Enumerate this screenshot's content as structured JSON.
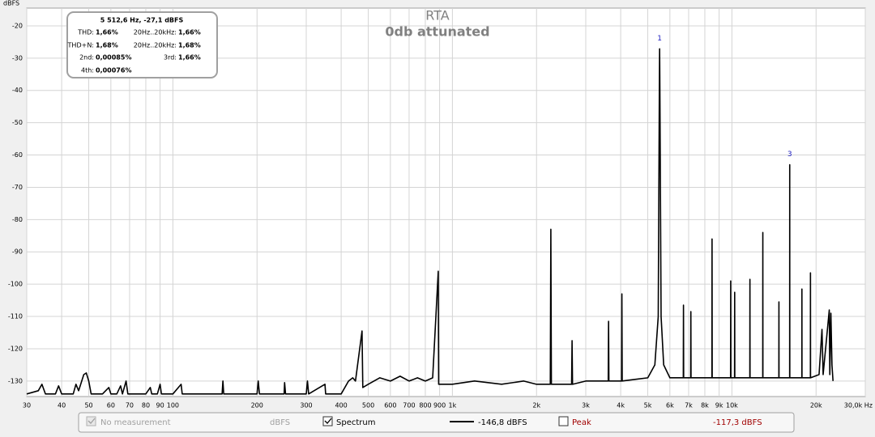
{
  "chart_data": {
    "type": "line",
    "title": "RTA",
    "subtitle": "0db attunated",
    "ylabel": "dBFS",
    "log_x": true,
    "grid": true,
    "xlim": [
      30,
      30000
    ],
    "ylim": [
      -134.8,
      -14.5
    ],
    "yticks": [
      -20,
      -30,
      -40,
      -50,
      -60,
      -70,
      -80,
      -90,
      -100,
      -110,
      -120,
      -130
    ],
    "xticks": [
      30,
      40,
      50,
      60,
      70,
      80,
      90,
      100,
      200,
      300,
      400,
      500,
      600,
      700,
      800,
      900,
      {
        "value": 1000,
        "label": "1k"
      },
      {
        "value": 2000,
        "label": "2k"
      },
      {
        "value": 3000,
        "label": "3k"
      },
      {
        "value": 4000,
        "label": "4k"
      },
      {
        "value": 5000,
        "label": "5k"
      },
      {
        "value": 6000,
        "label": "6k"
      },
      {
        "value": 7000,
        "label": "7k"
      },
      {
        "value": 8000,
        "label": "8k"
      },
      {
        "value": 9000,
        "label": "9k"
      },
      {
        "value": 10000,
        "label": "10k"
      },
      {
        "value": 20000,
        "label": "20k"
      },
      {
        "value": 30000,
        "label": "30,0k Hz"
      }
    ],
    "series": [
      {
        "name": "Spectrum",
        "color": "#000000",
        "x": [
          30,
          33,
          34,
          35,
          38,
          39,
          40,
          44,
          45,
          46,
          48,
          49,
          50,
          51,
          56,
          59,
          60,
          63,
          65,
          66,
          68,
          69,
          80,
          83,
          84,
          88,
          90,
          91,
          100,
          107,
          108,
          150,
          151,
          152,
          200,
          202,
          204,
          250,
          251,
          253,
          300,
          303,
          306,
          350,
          352,
          400,
          425,
          440,
          450,
          475,
          478,
          500,
          550,
          600,
          650,
          700,
          750,
          800,
          850,
          890,
          893,
          1000,
          1200,
          1500,
          1800,
          2000,
          2240,
          2250,
          2260,
          2500,
          2670,
          2680,
          2690,
          3000,
          3500,
          3610,
          3620,
          3630,
          4030,
          4040,
          4050,
          4500,
          5000,
          5300,
          5450,
          5500,
          5512.6,
          5525,
          5580,
          5700,
          6000,
          6700,
          6710,
          6720,
          7120,
          7130,
          7140,
          8000,
          8480,
          8490,
          8500,
          9890,
          9900,
          9910,
          10220,
          10230,
          10240,
          11590,
          11600,
          11610,
          12890,
          12900,
          12910,
          14720,
          14730,
          14740,
          16090,
          16100,
          16110,
          17790,
          17800,
          17810,
          19090,
          19100,
          19110,
          20500,
          21000,
          21200,
          22300,
          22400,
          22600,
          22800,
          23000
        ],
        "values": [
          -134,
          -133,
          -131,
          -134,
          -134,
          -131.5,
          -134,
          -134,
          -131,
          -133,
          -128,
          -127.5,
          -130,
          -134,
          -134,
          -132,
          -134,
          -134,
          -131.5,
          -134,
          -130,
          -134,
          -134,
          -132,
          -134,
          -134,
          -131,
          -134,
          -134,
          -131,
          -134,
          -134,
          -130,
          -134,
          -134,
          -130,
          -134,
          -134,
          -130.5,
          -134,
          -134,
          -130,
          -134,
          -131,
          -134,
          -134,
          -130,
          -129,
          -130,
          -114.5,
          -132,
          -131,
          -129,
          -130,
          -128.5,
          -130,
          -129,
          -130,
          -129,
          -96,
          -131,
          -131,
          -130,
          -131,
          -130,
          -131,
          -131,
          -83,
          -131,
          -131,
          -131,
          -117.5,
          -131,
          -130,
          -130,
          -130,
          -111.5,
          -130,
          -130,
          -103,
          -130,
          -129.5,
          -129,
          -125,
          -110,
          -40,
          -27.1,
          -40,
          -110,
          -125,
          -129,
          -129,
          -106.5,
          -129,
          -129,
          -108.5,
          -129,
          -129,
          -129,
          -86,
          -129,
          -129,
          -99,
          -129,
          -129,
          -102.5,
          -129,
          -129,
          -98.5,
          -129,
          -129,
          -84,
          -129,
          -129,
          -105.5,
          -129,
          -129,
          -63,
          -129,
          -129,
          -101.5,
          -129,
          -129,
          -96.5,
          -129,
          -128,
          -114,
          -128,
          -108,
          -128,
          -109,
          -125,
          -130
        ]
      }
    ],
    "annotations": [
      {
        "label": "1",
        "x": 5512.6,
        "value": -27.1
      },
      {
        "label": "3",
        "x": 16100,
        "value": -63
      }
    ]
  },
  "info_box": {
    "header": "5 512,6 Hz, -27,1 dBFS",
    "rows": [
      [
        "THD:",
        "1,66%",
        "20Hz..20kHz:",
        "1,66%"
      ],
      [
        "THD+N:",
        "1,68%",
        "20Hz..20kHz:",
        "1,68%"
      ],
      [
        "2nd:",
        "0,00085%",
        "3rd:",
        "1,66%"
      ],
      [
        "4th:",
        "0,00076%"
      ]
    ]
  },
  "legend_bar": {
    "no_measurement": "No measurement",
    "unit": "dBFS",
    "spectrum_value": "-146,8 dBFS",
    "peak": "Peak",
    "peak_value": "-117,3 dBFS"
  }
}
